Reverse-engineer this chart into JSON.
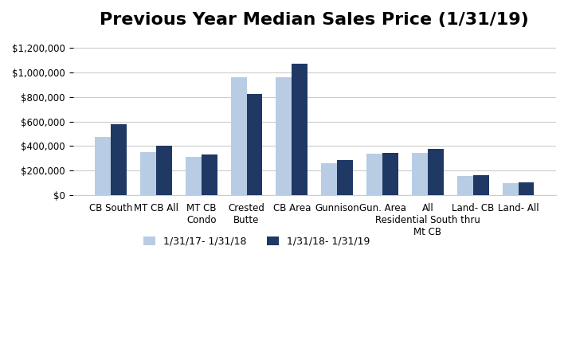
{
  "title": "Previous Year Median Sales Price (1/31/19)",
  "categories": [
    "CB South",
    "MT CB All",
    "MT CB\nCondo",
    "Crested\nButte",
    "CB Area",
    "Gunnison",
    "Gun. Area",
    "All\nResidential South thru\nMt CB",
    "Land- CB",
    "Land- All"
  ],
  "series1_label": "1/31/17- 1/31/18",
  "series2_label": "1/31/18- 1/31/19",
  "series1_values": [
    475000,
    350000,
    310000,
    962500,
    962500,
    257500,
    340000,
    345000,
    155000,
    100000
  ],
  "series2_values": [
    580000,
    400000,
    332500,
    825000,
    1075000,
    287500,
    347500,
    375000,
    163000,
    105000
  ],
  "color1": "#b8cce4",
  "color2": "#1f3864",
  "ylim": [
    0,
    1300000
  ],
  "yticks": [
    0,
    200000,
    400000,
    600000,
    800000,
    1000000,
    1200000
  ],
  "background_color": "#ffffff",
  "grid_color": "#cccccc",
  "title_fontsize": 16,
  "tick_fontsize": 8.5,
  "legend_fontsize": 9
}
